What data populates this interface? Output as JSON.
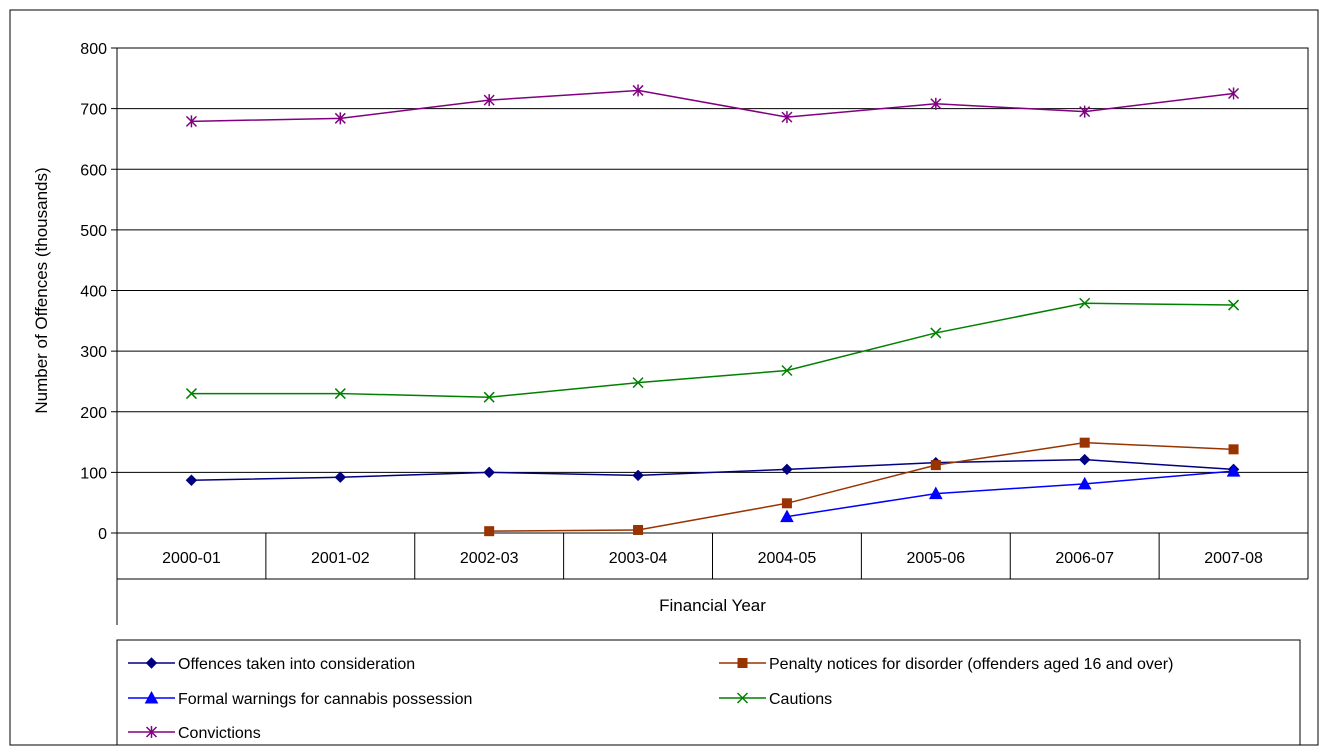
{
  "chart_data": {
    "type": "line",
    "categories": [
      "2000-01",
      "2001-02",
      "2002-03",
      "2003-04",
      "2004-05",
      "2005-06",
      "2006-07",
      "2007-08"
    ],
    "xlabel": "Financial Year",
    "ylabel": "Number of Offences (thousands)",
    "ylim": [
      0,
      800
    ],
    "yticks": [
      0,
      100,
      200,
      300,
      400,
      500,
      600,
      700,
      800
    ],
    "grid": true,
    "legend_position": "bottom",
    "series": [
      {
        "name": "Offences taken into consideration",
        "color": "#000080",
        "marker": "diamond",
        "values": [
          87,
          92,
          100,
          95,
          105,
          116,
          121,
          105
        ]
      },
      {
        "name": "Penalty notices for disorder (offenders aged 16 and over)",
        "color": "#993300",
        "marker": "square",
        "values": [
          null,
          null,
          3,
          5,
          49,
          112,
          149,
          138
        ]
      },
      {
        "name": "Formal warnings for cannabis possession",
        "color": "#0000ff",
        "marker": "triangle",
        "values": [
          null,
          null,
          null,
          null,
          27,
          65,
          81,
          102
        ]
      },
      {
        "name": "Cautions",
        "color": "#008000",
        "marker": "x",
        "values": [
          230,
          230,
          224,
          248,
          268,
          330,
          379,
          376
        ]
      },
      {
        "name": "Convictions",
        "color": "#800080",
        "marker": "star",
        "values": [
          679,
          684,
          714,
          730,
          686,
          708,
          695,
          725
        ]
      }
    ]
  }
}
